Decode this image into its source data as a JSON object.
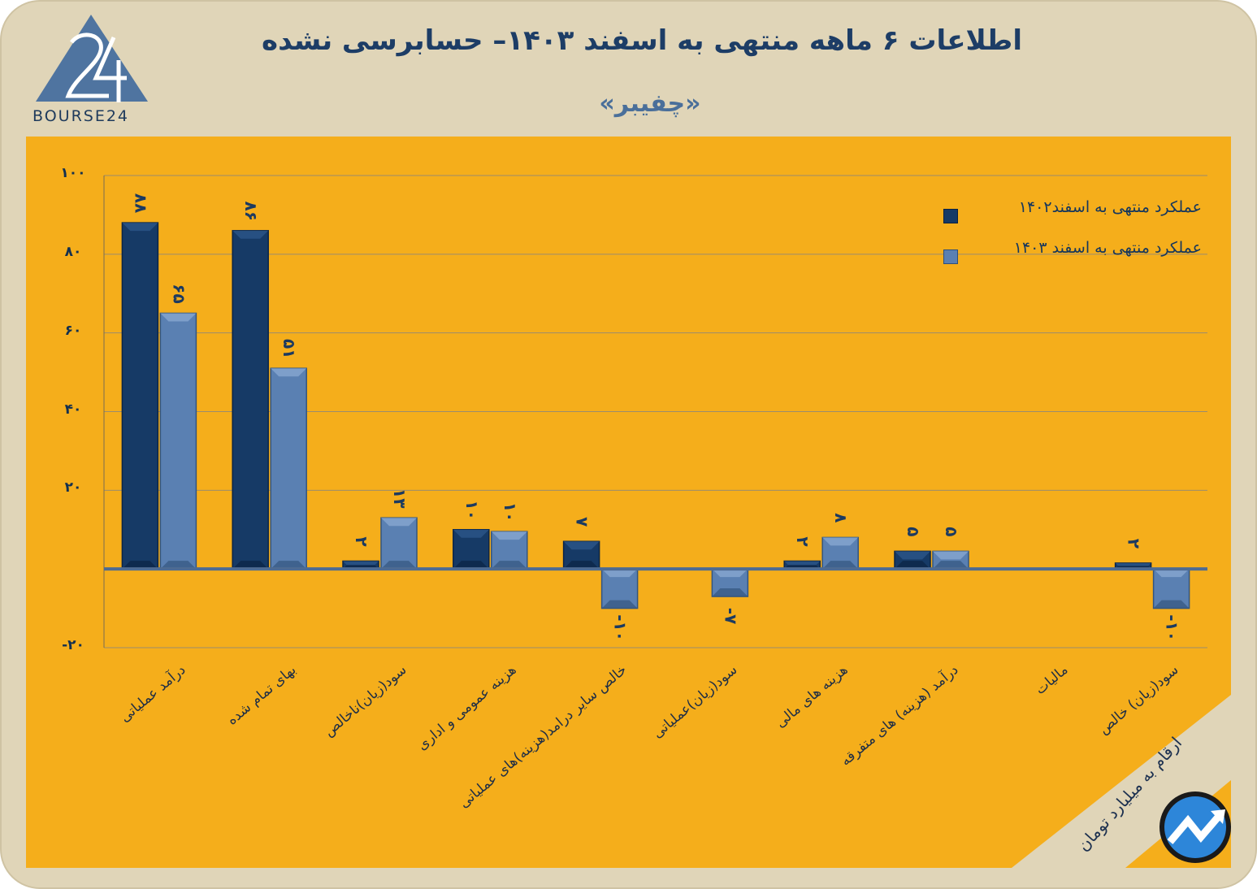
{
  "header": {
    "title": "اطلاعات ۶ ماهه منتهی به اسفند ۱۴۰۳– حسابرسی نشده",
    "subtitle": "«چفیبر»",
    "logo_text": "BOURSE24"
  },
  "colors": {
    "background": "#e0d5b8",
    "plot_area": "#f5ae1b",
    "series_1402": "#163a66",
    "series_1403": "#5a80b2",
    "axis_text": "#13304f"
  },
  "footer": {
    "units_note": "ارقام به میلیارد تومان"
  },
  "chart_data": {
    "type": "bar",
    "title": "اطلاعات ۶ ماهه منتهی به اسفند ۱۴۰۳– حسابرسی نشده",
    "subtitle": "«چفیبر»",
    "xlabel": "",
    "ylabel": "",
    "ylim": [
      -20,
      100
    ],
    "yticks": [
      100,
      80,
      60,
      40,
      20,
      -20
    ],
    "ytick_labels": [
      "۱۰۰",
      "۸۰",
      "۶۰",
      "۴۰",
      "۲۰",
      "-۲۰"
    ],
    "grid": true,
    "legend_position": "top-right",
    "categories": [
      "درآمد عملیاتی",
      "بهای تمام شده",
      "سود(زیان)ناخالص",
      "هزینه عمومی و اداری",
      "خالص سایر درامد(هزینه)های عملیاتی",
      "سود(زیان)عملیاتی",
      "هزینه های مالی",
      "درآمد (هزینه) های متفرقه",
      "مالیات",
      "سود(زیان) خالص"
    ],
    "series": [
      {
        "name": "عملکرد منتهی به اسفند۱۴۰۲",
        "values": [
          88,
          86,
          2,
          10,
          7,
          0,
          2,
          4.5,
          0,
          1.5
        ],
        "labels": [
          "۸۸",
          "۸۶",
          "۲",
          "۱۰",
          "۷",
          null,
          "۲",
          "۵",
          null,
          "۲"
        ]
      },
      {
        "name": "عملکرد منتهی به اسفند ۱۴۰۳",
        "values": [
          65,
          51,
          13,
          9.5,
          -10,
          -7,
          8,
          4.5,
          0,
          -10
        ],
        "labels": [
          "۶۵",
          "۵۱",
          "۱۳",
          "۱۰",
          "-۱۰",
          "-۷",
          "۸",
          "۵",
          null,
          "-۱۰"
        ]
      }
    ]
  }
}
